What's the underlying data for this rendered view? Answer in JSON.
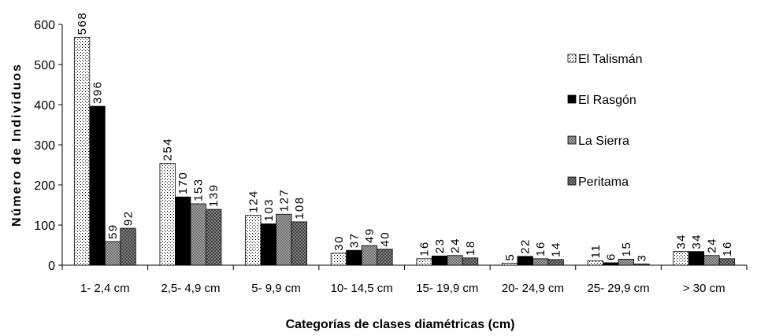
{
  "chart_data": {
    "type": "bar",
    "xlabel": "Categorías de clases diamétricas (cm)",
    "ylabel": "Número de Individuos",
    "ylim": [
      0,
      600
    ],
    "yticks": [
      0,
      100,
      200,
      300,
      400,
      500,
      600
    ],
    "grid": false,
    "legend_position": "right",
    "categories": [
      "1- 2,4 cm",
      "2,5- 4,9 cm",
      "5- 9,9 cm",
      "10- 14,5 cm",
      "15- 19,9 cm",
      "20- 24,9 cm",
      "25- 29,9 cm",
      "> 30 cm"
    ],
    "series": [
      {
        "name": "El Talismán",
        "pattern": "dots",
        "values": [
          568,
          254,
          124,
          30,
          16,
          5,
          11,
          34
        ]
      },
      {
        "name": "El Rasgón",
        "pattern": "solid-black",
        "values": [
          396,
          170,
          103,
          37,
          23,
          22,
          6,
          34
        ]
      },
      {
        "name": "La Sierra",
        "pattern": "gray-dither",
        "values": [
          59,
          153,
          127,
          49,
          24,
          16,
          15,
          24
        ]
      },
      {
        "name": "Peritama",
        "pattern": "dark-check",
        "values": [
          92,
          139,
          108,
          40,
          18,
          14,
          3,
          16
        ]
      }
    ]
  }
}
